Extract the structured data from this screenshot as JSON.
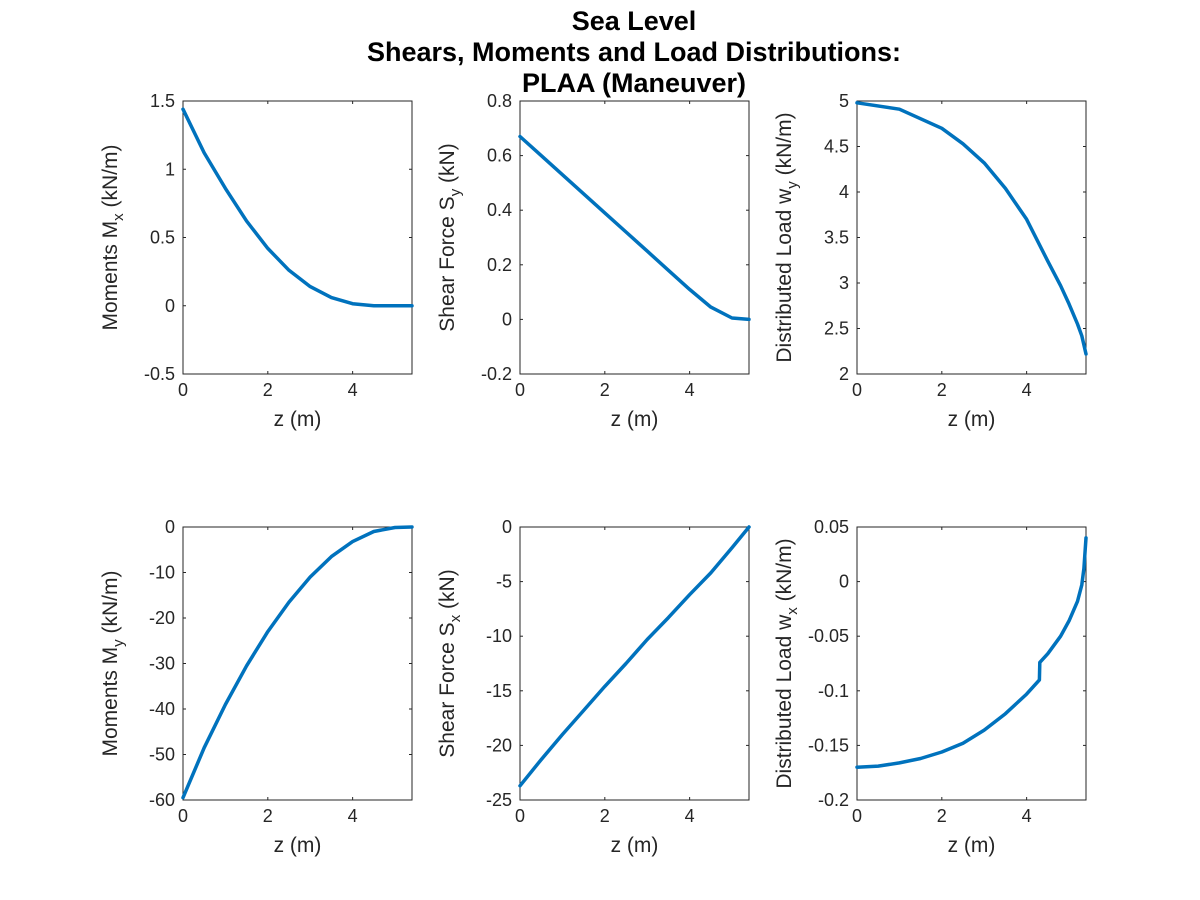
{
  "figure": {
    "title_lines": [
      "Sea Level",
      "Shears, Moments and Load Distributions:",
      "PLAA (Maneuver)"
    ],
    "line_color": "#0072BD"
  },
  "chart_data": [
    {
      "type": "line",
      "xlabel": "z (m)",
      "ylabel": {
        "prefix": "Moments M",
        "sub": "x",
        "suffix": " (kN/m)"
      },
      "xlim": [
        0,
        5.4
      ],
      "ylim": [
        -0.5,
        1.5
      ],
      "xticks": [
        0,
        2,
        4
      ],
      "xtick_labels": [
        "0",
        "2",
        "4"
      ],
      "yticks": [
        -0.5,
        0,
        0.5,
        1,
        1.5
      ],
      "ytick_labels": [
        "-0.5",
        "0",
        "0.5",
        "1",
        "1.5"
      ],
      "series": [
        {
          "x": [
            0,
            0.5,
            1,
            1.5,
            2,
            2.5,
            3,
            3.5,
            4,
            4.5,
            5,
            5.4
          ],
          "y": [
            1.44,
            1.12,
            0.86,
            0.62,
            0.42,
            0.26,
            0.14,
            0.06,
            0.015,
            0.0,
            0.0,
            0.0
          ]
        }
      ]
    },
    {
      "type": "line",
      "xlabel": "z (m)",
      "ylabel": {
        "prefix": "Shear Force S",
        "sub": "y",
        "suffix": " (kN)"
      },
      "xlim": [
        0,
        5.4
      ],
      "ylim": [
        -0.2,
        0.8
      ],
      "xticks": [
        0,
        2,
        4
      ],
      "xtick_labels": [
        "0",
        "2",
        "4"
      ],
      "yticks": [
        -0.2,
        0,
        0.2,
        0.4,
        0.6,
        0.8
      ],
      "ytick_labels": [
        "-0.2",
        "0",
        "0.2",
        "0.4",
        "0.6",
        "0.8"
      ],
      "series": [
        {
          "x": [
            0,
            0.5,
            1,
            1.5,
            2,
            2.5,
            3,
            3.5,
            4,
            4.5,
            5,
            5.4
          ],
          "y": [
            0.67,
            0.6,
            0.53,
            0.46,
            0.39,
            0.32,
            0.25,
            0.18,
            0.11,
            0.045,
            0.005,
            0.0
          ]
        }
      ]
    },
    {
      "type": "line",
      "xlabel": "z (m)",
      "ylabel": {
        "prefix": "Distributed Load w",
        "sub": "y",
        "suffix": " (kN/m)"
      },
      "xlim": [
        0,
        5.4
      ],
      "ylim": [
        2,
        5
      ],
      "xticks": [
        0,
        2,
        4
      ],
      "xtick_labels": [
        "0",
        "2",
        "4"
      ],
      "yticks": [
        2,
        2.5,
        3,
        3.5,
        4,
        4.5,
        5
      ],
      "ytick_labels": [
        "2",
        "2.5",
        "3",
        "3.5",
        "4",
        "4.5",
        "5"
      ],
      "series": [
        {
          "x": [
            0,
            1,
            2,
            2.5,
            3,
            3.5,
            4,
            4.5,
            4.8,
            5.0,
            5.2,
            5.3,
            5.35,
            5.4
          ],
          "y": [
            4.98,
            4.91,
            4.7,
            4.53,
            4.32,
            4.04,
            3.7,
            3.24,
            2.97,
            2.77,
            2.55,
            2.42,
            2.32,
            2.22
          ]
        }
      ]
    },
    {
      "type": "line",
      "xlabel": "z (m)",
      "ylabel": {
        "prefix": "Moments M",
        "sub": "y",
        "suffix": " (kN/m)"
      },
      "xlim": [
        0,
        5.4
      ],
      "ylim": [
        -60,
        0
      ],
      "xticks": [
        0,
        2,
        4
      ],
      "xtick_labels": [
        "0",
        "2",
        "4"
      ],
      "yticks": [
        -60,
        -50,
        -40,
        -30,
        -20,
        -10,
        0
      ],
      "ytick_labels": [
        "-60",
        "-50",
        "-40",
        "-30",
        "-20",
        "-10",
        "0"
      ],
      "series": [
        {
          "x": [
            0,
            0.5,
            1,
            1.5,
            2,
            2.5,
            3,
            3.5,
            4,
            4.5,
            5,
            5.4
          ],
          "y": [
            -59.5,
            -48.5,
            -39.0,
            -30.5,
            -23.0,
            -16.5,
            -11.0,
            -6.5,
            -3.2,
            -1.0,
            -0.1,
            0.0
          ]
        }
      ]
    },
    {
      "type": "line",
      "xlabel": "z (m)",
      "ylabel": {
        "prefix": "Shear Force S",
        "sub": "x",
        "suffix": " (kN)"
      },
      "xlim": [
        0,
        5.4
      ],
      "ylim": [
        -25,
        0
      ],
      "xticks": [
        0,
        2,
        4
      ],
      "xtick_labels": [
        "0",
        "2",
        "4"
      ],
      "yticks": [
        -25,
        -20,
        -15,
        -10,
        -5,
        0
      ],
      "ytick_labels": [
        "-25",
        "-20",
        "-15",
        "-10",
        "-5",
        "0"
      ],
      "series": [
        {
          "x": [
            0,
            0.5,
            1,
            1.5,
            2,
            2.5,
            3,
            3.5,
            4,
            4.5,
            5,
            5.4
          ],
          "y": [
            -23.7,
            -21.3,
            -19.0,
            -16.8,
            -14.6,
            -12.5,
            -10.3,
            -8.3,
            -6.2,
            -4.2,
            -1.9,
            0.0
          ]
        }
      ]
    },
    {
      "type": "line",
      "xlabel": "z (m)",
      "ylabel": {
        "prefix": "Distributed Load w",
        "sub": "x",
        "suffix": " (kN/m)"
      },
      "xlim": [
        0,
        5.4
      ],
      "ylim": [
        -0.2,
        0.05
      ],
      "xticks": [
        0,
        2,
        4
      ],
      "xtick_labels": [
        "0",
        "2",
        "4"
      ],
      "yticks": [
        -0.2,
        -0.15,
        -0.1,
        -0.05,
        0,
        0.05
      ],
      "ytick_labels": [
        "-0.2",
        "-0.15",
        "-0.1",
        "-0.05",
        "0",
        "0.05"
      ],
      "series": [
        {
          "x": [
            0,
            0.5,
            1,
            1.5,
            2,
            2.5,
            3,
            3.5,
            4,
            4.3,
            4.31,
            4.5,
            4.8,
            5.0,
            5.2,
            5.3,
            5.35,
            5.4
          ],
          "y": [
            -0.17,
            -0.169,
            -0.166,
            -0.162,
            -0.156,
            -0.148,
            -0.136,
            -0.121,
            -0.103,
            -0.09,
            -0.074,
            -0.066,
            -0.05,
            -0.036,
            -0.018,
            -0.003,
            0.012,
            0.04
          ]
        }
      ]
    }
  ]
}
